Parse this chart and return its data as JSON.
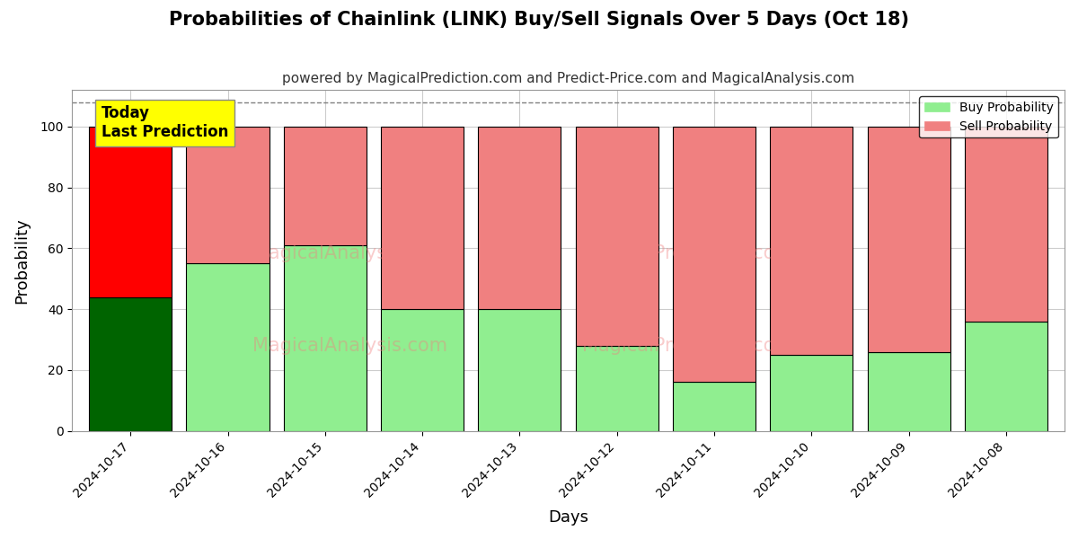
{
  "title": "Probabilities of Chainlink (LINK) Buy/Sell Signals Over 5 Days (Oct 18)",
  "subtitle": "powered by MagicalPrediction.com and Predict-Price.com and MagicalAnalysis.com",
  "xlabel": "Days",
  "ylabel": "Probability",
  "categories": [
    "2024-10-17",
    "2024-10-16",
    "2024-10-15",
    "2024-10-14",
    "2024-10-13",
    "2024-10-12",
    "2024-10-11",
    "2024-10-10",
    "2024-10-09",
    "2024-10-08"
  ],
  "buy_values": [
    44,
    55,
    61,
    40,
    40,
    28,
    16,
    25,
    26,
    36
  ],
  "sell_values": [
    56,
    45,
    39,
    60,
    60,
    72,
    84,
    75,
    74,
    64
  ],
  "today_index": 0,
  "buy_color_today": "#006400",
  "sell_color_today": "#ff0000",
  "buy_color_normal": "#90EE90",
  "sell_color_normal": "#F08080",
  "bar_edge_color": "#000000",
  "bar_edge_linewidth": 0.8,
  "ylim": [
    0,
    112
  ],
  "yticks": [
    0,
    20,
    40,
    60,
    80,
    100
  ],
  "dashed_line_y": 108,
  "grid_color": "#cccccc",
  "bg_color": "#ffffff",
  "annotation_box_color": "#ffff00",
  "annotation_text": "Today\nLast Prediction",
  "annotation_fontsize": 12,
  "title_fontsize": 15,
  "subtitle_fontsize": 11,
  "axis_label_fontsize": 13,
  "tick_fontsize": 10,
  "legend_fontsize": 10,
  "bar_width": 0.85
}
